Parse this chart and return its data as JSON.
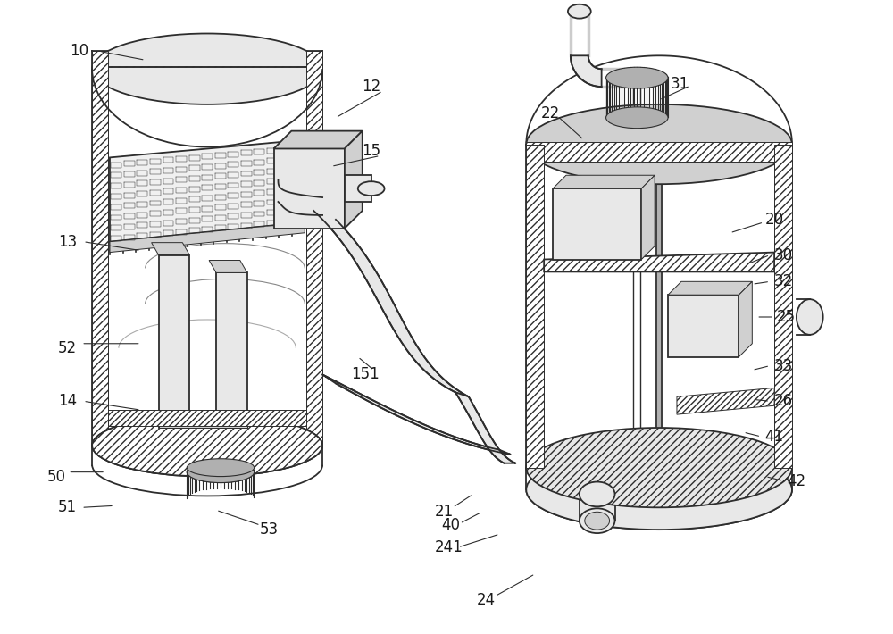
{
  "bg_color": "#ffffff",
  "line_color": "#2d2d2d",
  "fig_width": 10.0,
  "fig_height": 7.1,
  "label_fontsize": 12,
  "lw_main": 1.3,
  "lw_thin": 0.7,
  "lw_pipe": 2.5,
  "gray_light": "#e8e8e8",
  "gray_mid": "#d0d0d0",
  "gray_dark": "#b0b0b0",
  "hatch_fc": "#ffffff"
}
